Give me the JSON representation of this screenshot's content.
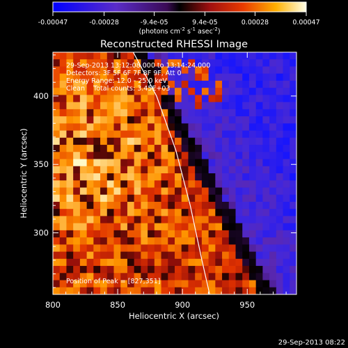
{
  "chart_data": {
    "type": "heatmap",
    "title": "Reconstructed RHESSI Image",
    "xlabel": "Heliocentric X (arcsec)",
    "ylabel": "Heliocentric Y (arcsec)",
    "xlim": [
      800,
      988
    ],
    "ylim": [
      255,
      432
    ],
    "x_ticks": [
      800,
      850,
      900,
      950
    ],
    "y_ticks": [
      300,
      350,
      400
    ],
    "colorbar": {
      "range": [
        -0.00047,
        0.00047
      ],
      "tick_values": [
        -0.00047,
        -0.00028,
        -9.4e-05,
        9.4e-05,
        0.00028,
        0.00047
      ],
      "tick_labels": [
        "-0.00047",
        "-0.00028",
        "-9.4e-05",
        "9.4e-05",
        "0.00028",
        "0.00047"
      ],
      "unit_text": "(photons cm",
      "unit_exp1": "-2",
      "unit_mid": " s",
      "unit_exp2": "-1",
      "unit_mid2": " asec",
      "unit_exp3": "-2",
      "unit_end": ")"
    },
    "annotations": {
      "time_range": "29-Sep-2013 13:12:08.000 to 13:14:24.000",
      "detectors": "Detectors: 3F 5F 6F 7F 8F 9F, Att 0",
      "energy": "Energy Range: 12.0 - 25.0 keV",
      "clean": "Clean    Total counts: 3.45E+03",
      "peak": "Position of Peak = [827,351]"
    },
    "peak": [
      827,
      351
    ],
    "limb_curve": [
      [
        862,
        432
      ],
      [
        880,
        400
      ],
      [
        895,
        360
      ],
      [
        906,
        320
      ],
      [
        915,
        280
      ],
      [
        921,
        255
      ]
    ],
    "image_grid": {
      "cols": 36,
      "rows": 34,
      "x_range": [
        800,
        988
      ],
      "y_range": [
        255,
        432
      ],
      "values": []
    },
    "timestamp": "29-Sep-2013 08:22"
  }
}
